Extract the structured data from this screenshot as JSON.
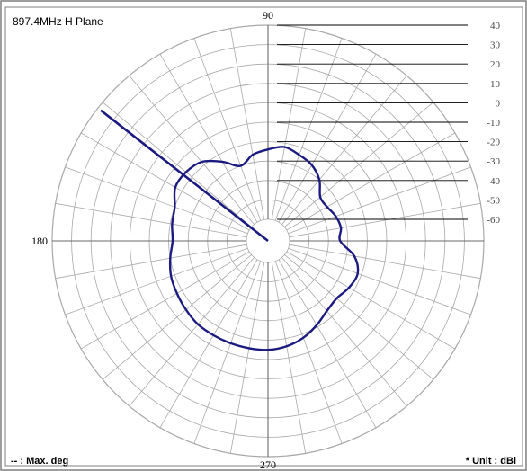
{
  "chart_data": {
    "type": "polar",
    "title": "897.4MHz H Plane",
    "angle_labels": {
      "top": "90",
      "left": "180",
      "bottom": "270"
    },
    "angle_step_deg": 10,
    "radial_ticks": [
      "40",
      "30",
      "20",
      "10",
      "0",
      "-10",
      "-20",
      "-30",
      "-40",
      "-50",
      "-60"
    ],
    "rlim": [
      -60,
      40
    ],
    "unit_text": "* Unit : dBi",
    "max_text": "-- : Max. deg",
    "max_direction_deg": 142,
    "grid": true,
    "series": [
      {
        "angle_deg": [
          0,
          10,
          20,
          30,
          40,
          50,
          60,
          70,
          80,
          90,
          100,
          110,
          120,
          130,
          140,
          150,
          160,
          170,
          180,
          190,
          200,
          210,
          220,
          230,
          240,
          250,
          260,
          270,
          280,
          290,
          300,
          310,
          320,
          330,
          340,
          350
        ],
        "gain_dbi": [
          -34,
          -33,
          -34,
          -36,
          -36,
          -30,
          -26,
          -24,
          -22,
          -24,
          -26,
          -30,
          -24,
          -18,
          -16,
          -16,
          -20,
          -21,
          -22,
          -20,
          -18,
          -17,
          -16,
          -15,
          -15,
          -15,
          -15,
          -15,
          -16,
          -18,
          -21,
          -24,
          -25,
          -23,
          -22,
          -26
        ]
      }
    ]
  },
  "colors": {
    "trace": "#1a1a80",
    "grid": "#a8a8a8",
    "axis": "#000000",
    "frame": "#7f7f7f"
  }
}
